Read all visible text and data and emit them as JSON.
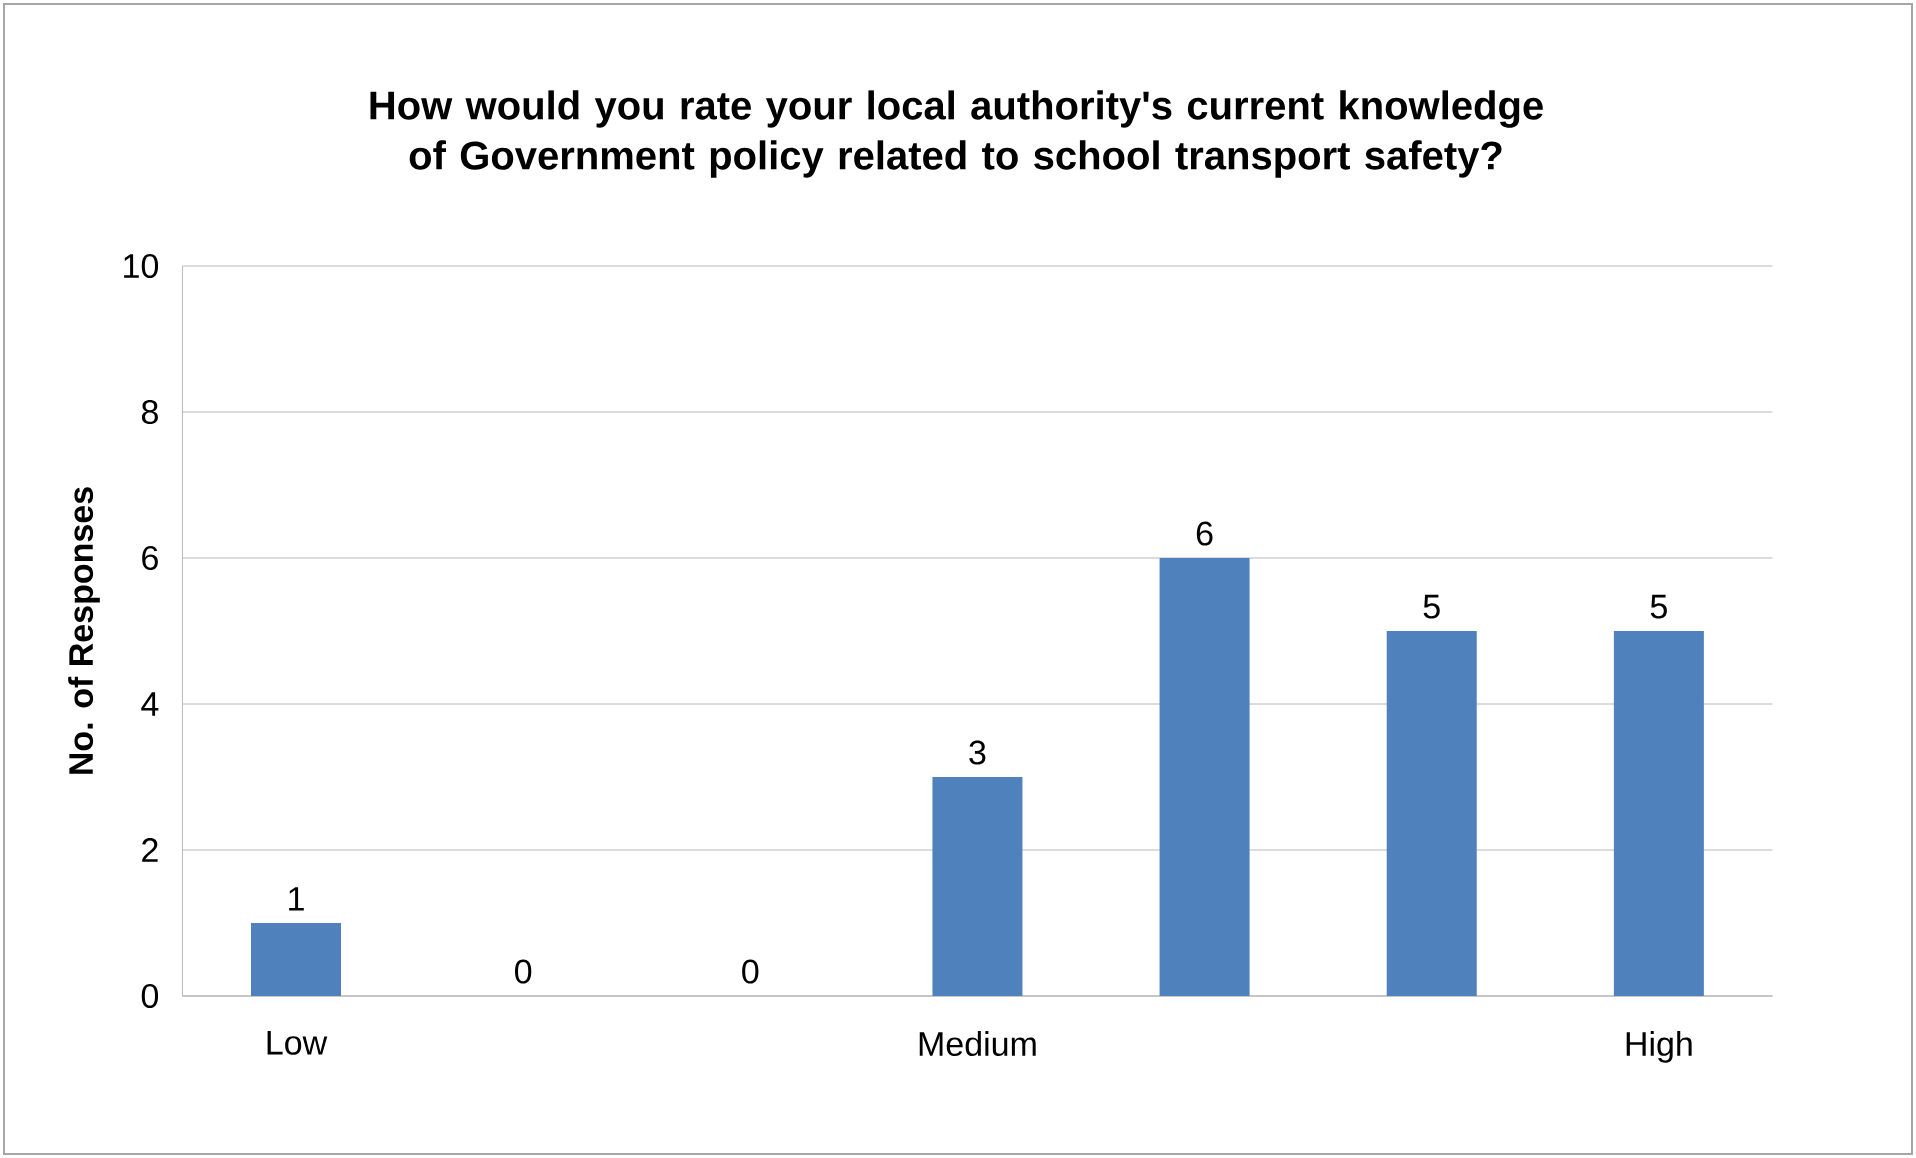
{
  "chart_data": {
    "type": "bar",
    "title": "How would you rate your local authority's current knowledge of Government policy related to school transport safety?",
    "ylabel": "No. of Responses",
    "categories": [
      "Low",
      null,
      null,
      "Medium",
      null,
      null,
      "High"
    ],
    "values": [
      1,
      0,
      0,
      3,
      6,
      5,
      5
    ],
    "color": "#4f81bd",
    "ylim": [
      0,
      10
    ],
    "yticks": [
      0,
      2,
      4,
      6,
      8,
      10
    ],
    "grid": "y",
    "data_labels": true
  }
}
